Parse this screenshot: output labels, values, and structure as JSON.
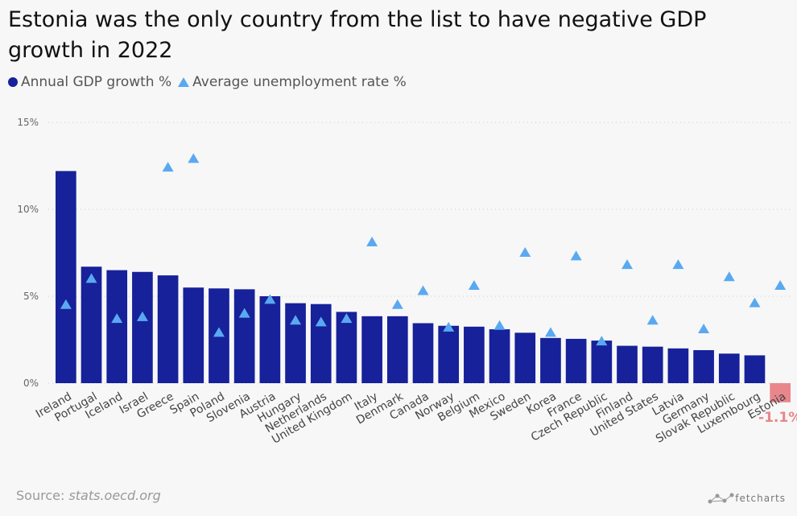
{
  "title": "Estonia was the only country from the list to have negative GDP growth in 2022",
  "legend": {
    "gdp_label": "Annual GDP growth %",
    "unemployment_label": "Average unemployment rate %"
  },
  "source": {
    "prefix": "Source: ",
    "url": "stats.oecd.org"
  },
  "brand": "fetcharts",
  "colors": {
    "bar": "#16219a",
    "negative_bar": "#e8868c",
    "marker": "#5aa9f0",
    "grid": "#cccccc"
  },
  "chart_data": {
    "type": "bar",
    "title": "Estonia was the only country from the list to have negative GDP growth in 2022",
    "ylim": [
      -1.5,
      15
    ],
    "yticks": [
      0,
      5,
      10,
      15
    ],
    "ytick_labels": [
      "0%",
      "5%",
      "10%",
      "15%"
    ],
    "grid": true,
    "legend_position": "top-left",
    "highlight_label": "-1.1%",
    "categories": [
      "Ireland",
      "Portugal",
      "Iceland",
      "Israel",
      "Greece",
      "Spain",
      "Poland",
      "Slovenia",
      "Austria",
      "Hungary",
      "Netherlands",
      "United Kingdom",
      "Italy",
      "Denmark",
      "Canada",
      "Norway",
      "Belgium",
      "Mexico",
      "Sweden",
      "Korea",
      "France",
      "Czech Republic",
      "Finland",
      "United States",
      "Latvia",
      "Germany",
      "Slovak Republic",
      "Luxembourg",
      "Estonia"
    ],
    "series": [
      {
        "name": "Annual GDP growth %",
        "type": "bar",
        "values": [
          12.2,
          6.7,
          6.5,
          6.4,
          6.2,
          5.5,
          5.45,
          5.4,
          5.0,
          4.6,
          4.55,
          4.1,
          3.85,
          3.85,
          3.45,
          3.3,
          3.25,
          3.1,
          2.9,
          2.6,
          2.55,
          2.45,
          2.15,
          2.1,
          2.0,
          1.9,
          1.7,
          1.6,
          -1.1
        ]
      },
      {
        "name": "Average unemployment rate %",
        "type": "scatter",
        "values": [
          4.5,
          6.0,
          3.7,
          3.8,
          12.4,
          12.9,
          2.9,
          4.0,
          4.8,
          3.6,
          3.5,
          3.7,
          8.1,
          4.5,
          5.3,
          3.2,
          5.6,
          3.3,
          7.5,
          2.9,
          7.3,
          2.4,
          6.8,
          3.6,
          6.8,
          3.1,
          6.1,
          4.6,
          5.6
        ]
      }
    ]
  }
}
